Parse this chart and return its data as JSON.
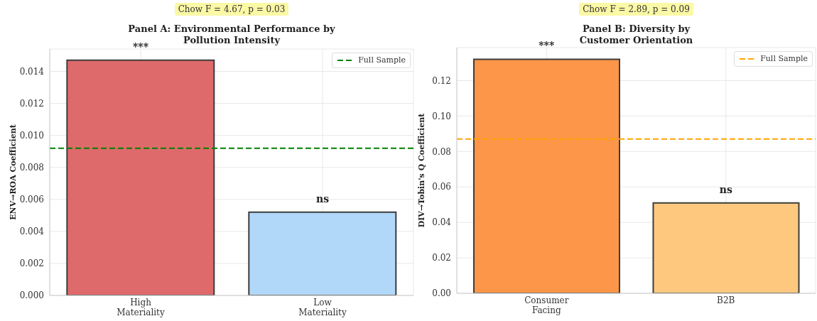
{
  "chart_data": [
    {
      "type": "bar",
      "title": "Panel A: Environmental Performance by\nPollution Intensity",
      "ylabel": "ENV→ROA Coefficient",
      "categories": [
        "High\nMateriality",
        "Low\nMateriality"
      ],
      "values": [
        0.0147,
        0.0052
      ],
      "colors": [
        "#df6a6b",
        "#b1d8f8"
      ],
      "ylim": [
        0,
        0.0154
      ],
      "yticks": [
        {
          "value": 0,
          "label": "0.000"
        },
        0.002,
        0.004,
        0.006,
        0.008,
        {
          "value": 0.01,
          "label": "0.010"
        },
        0.012,
        0.014
      ],
      "grid": true,
      "legend": "top right",
      "ref_lines": [
        {
          "axis": "y",
          "value": 0.0092,
          "label": "Full Sample",
          "color": "#008000",
          "line_style": "dashed"
        }
      ],
      "annotations": [
        "Chow F = 4.67, p = 0.03",
        {
          "text": "***",
          "x": "High\nMateriality",
          "y": 0.0147
        },
        {
          "text": "ns",
          "x": "Low\nMateriality",
          "y": 0.0052
        }
      ]
    },
    {
      "type": "bar",
      "title": "Panel B: Diversity by\nCustomer Orientation",
      "ylabel": "DIV→Tobin's Q Coefficient",
      "categories": [
        "Consumer\nFacing",
        "B2B"
      ],
      "values": [
        0.132,
        0.051
      ],
      "colors": [
        "#fd9648",
        "#fec97f"
      ],
      "ylim": [
        0,
        0.1386
      ],
      "yticks": [
        {
          "value": 0,
          "label": "0.00"
        },
        0.02,
        0.04,
        0.06,
        0.08,
        {
          "value": 0.1,
          "label": "0.10"
        },
        0.12
      ],
      "grid": true,
      "legend": "top right",
      "ref_lines": [
        {
          "axis": "y",
          "value": 0.087,
          "label": "Full Sample",
          "color": "#ffa500",
          "line_style": "dashed"
        }
      ],
      "annotations": [
        "Chow F = 2.89, p = 0.09",
        {
          "text": "***",
          "x": "Consumer\nFacing",
          "y": 0.132
        },
        {
          "text": "ns",
          "x": "B2B",
          "y": 0.051
        }
      ]
    }
  ]
}
